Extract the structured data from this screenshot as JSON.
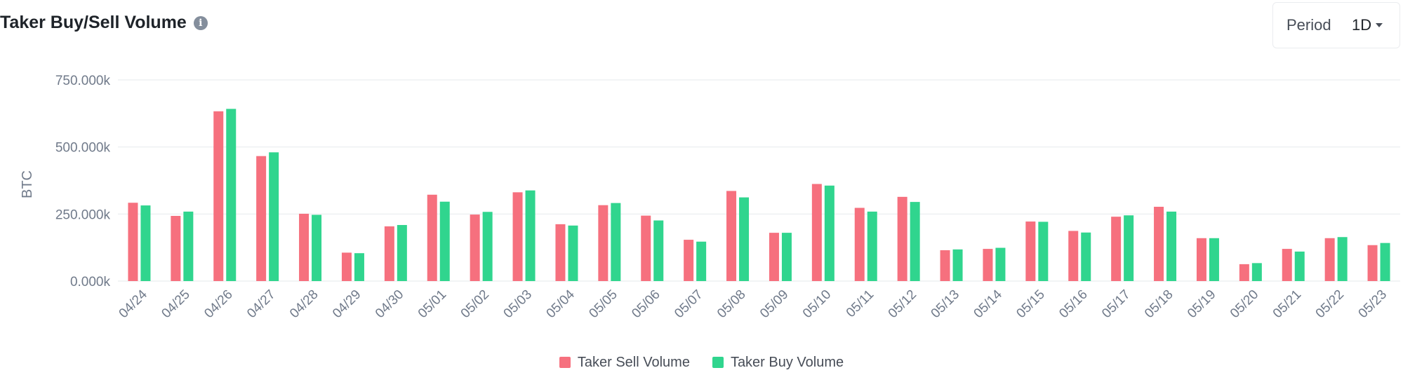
{
  "header": {
    "title": "Taker Buy/Sell Volume",
    "info_icon": "info-icon",
    "period_label": "Period",
    "period_value": "1D",
    "period_caret_icon": "chevron-down-icon"
  },
  "colors": {
    "sell": "#f6707e",
    "buy": "#30d58e",
    "grid": "#eef0f2",
    "axis_text": "#707a8a"
  },
  "chart_data": {
    "type": "bar",
    "title": "Taker Buy/Sell Volume",
    "xlabel": "",
    "ylabel": "BTC",
    "ylim": [
      0,
      750000
    ],
    "yticks": [
      0,
      250000,
      500000,
      750000
    ],
    "ytick_labels": [
      "0.000k",
      "250.000k",
      "500.000k",
      "750.000k"
    ],
    "grid": true,
    "legend_position": "bottom-center",
    "categories": [
      "04/24",
      "04/25",
      "04/26",
      "04/27",
      "04/28",
      "04/29",
      "04/30",
      "05/01",
      "05/02",
      "05/03",
      "05/04",
      "05/05",
      "05/06",
      "05/07",
      "05/08",
      "05/09",
      "05/10",
      "05/11",
      "05/12",
      "05/13",
      "05/14",
      "05/15",
      "05/16",
      "05/17",
      "05/18",
      "05/19",
      "05/20",
      "05/21",
      "05/22",
      "05/23"
    ],
    "series": [
      {
        "name": "Taker Sell Volume",
        "color": "#f6707e",
        "values": [
          292000,
          243000,
          633000,
          466000,
          251000,
          106000,
          204000,
          322000,
          248000,
          331000,
          212000,
          283000,
          244000,
          154000,
          336000,
          180000,
          362000,
          273000,
          314000,
          115000,
          120000,
          222000,
          187000,
          240000,
          277000,
          160000,
          63000,
          120000,
          160000,
          134000
        ]
      },
      {
        "name": "Taker Buy Volume",
        "color": "#30d58e",
        "values": [
          282000,
          259000,
          642000,
          480000,
          247000,
          104000,
          209000,
          296000,
          258000,
          338000,
          207000,
          291000,
          226000,
          147000,
          312000,
          180000,
          356000,
          259000,
          295000,
          118000,
          124000,
          221000,
          181000,
          245000,
          259000,
          160000,
          67000,
          110000,
          164000,
          142000
        ]
      }
    ]
  }
}
